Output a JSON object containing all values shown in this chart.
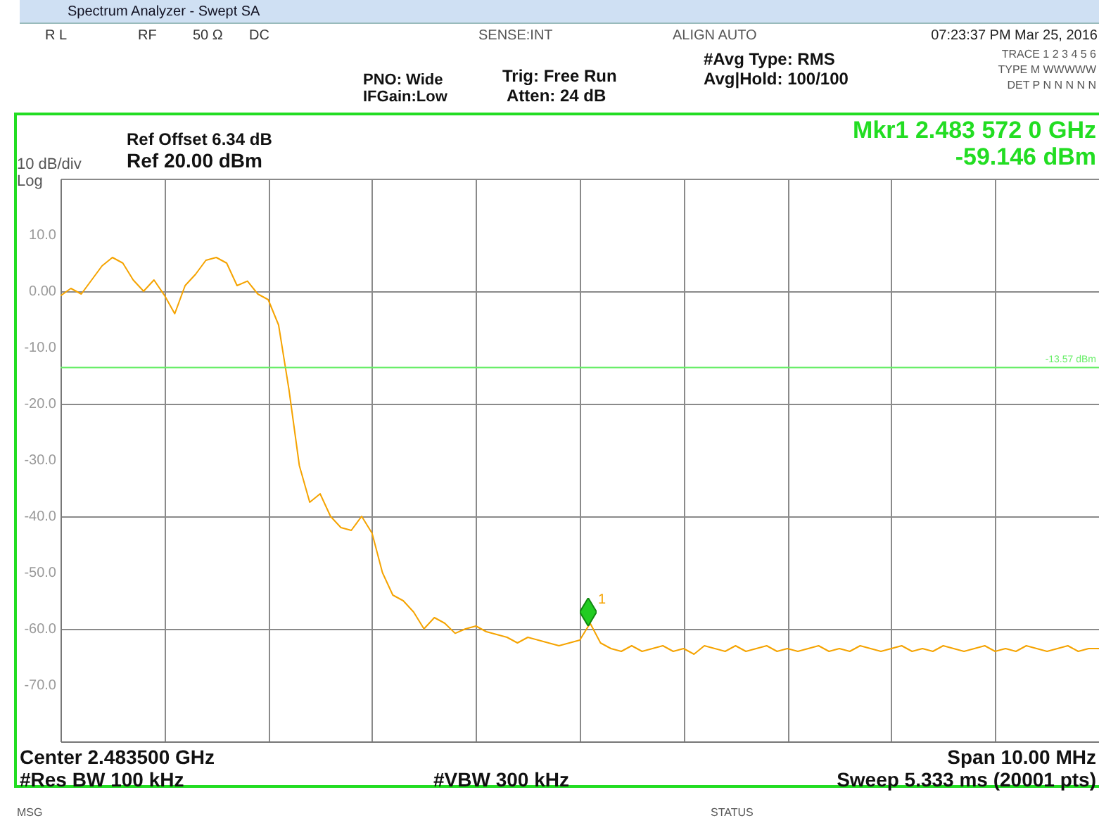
{
  "chart_data": {
    "type": "line",
    "title": "Spectrum Analyzer - Swept SA",
    "categories": [
      null,
      null,
      null,
      null,
      null,
      null,
      null,
      null,
      null,
      null,
      null,
      null,
      null,
      null,
      null,
      null,
      null,
      null,
      null,
      null,
      null,
      null,
      null,
      null,
      null,
      null,
      null,
      null,
      null,
      null,
      null,
      null,
      null,
      null,
      null,
      null,
      null,
      null,
      null,
      null,
      null,
      null,
      null,
      null,
      null,
      null,
      null,
      null,
      null,
      null,
      null,
      null,
      null,
      null,
      null,
      null,
      null,
      null,
      null,
      null,
      null,
      null,
      null,
      null,
      null,
      null,
      null,
      null,
      null,
      null,
      null,
      null,
      null,
      null,
      null,
      null,
      null,
      null,
      null,
      null,
      null,
      null,
      null,
      null,
      null,
      null,
      null,
      null,
      null,
      null,
      null,
      null,
      null,
      null,
      null,
      null,
      null,
      null,
      null,
      null,
      null
    ],
    "ylim": [
      -80,
      20
    ],
    "yticks": [
      {
        "value": 20,
        "label": null
      },
      {
        "value": 10,
        "label": "10.0"
      },
      {
        "value": 0,
        "label": "0.00"
      },
      {
        "value": -10,
        "label": "-10.0"
      },
      {
        "value": -20,
        "label": "-20.0"
      },
      {
        "value": -30,
        "label": "-30.0"
      },
      {
        "value": -40,
        "label": "-40.0"
      },
      {
        "value": -50,
        "label": "-50.0"
      },
      {
        "value": -60,
        "label": "-60.0"
      },
      {
        "value": -70,
        "label": "-70.0"
      },
      {
        "value": -80,
        "label": null
      }
    ],
    "tick_labels": "y",
    "grid": true,
    "series": [
      {
        "color": "#f5a300",
        "values": [
          -0.8,
          0.5,
          -0.5,
          2,
          4.5,
          6,
          5,
          2,
          0,
          2,
          -0.7,
          -4,
          1,
          3,
          5.5,
          6,
          5,
          1,
          1.8,
          -0.5,
          -1.5,
          -6,
          -17.5,
          -31,
          -37.5,
          -36,
          -40,
          -42,
          -42.5,
          -40,
          -43,
          -50,
          -54,
          -55,
          -57,
          -60,
          -58,
          -59,
          -60.8,
          -60,
          -59.5,
          -60.5,
          -61,
          -61.5,
          -62.5,
          -61.5,
          -62,
          -62.5,
          -63,
          -62.5,
          -62,
          -59,
          -62.5,
          -63.5,
          -64,
          -63,
          -64,
          -63.5,
          -63,
          -64,
          -63.5,
          -64.5,
          -63,
          -63.5,
          -64,
          -63,
          -64,
          -63.5,
          -63,
          -64,
          -63.5,
          -64,
          -63.5,
          -63,
          -64,
          -63.5,
          -64,
          -63,
          -63.5,
          -64,
          -63.5,
          -63,
          -64,
          -63.5,
          -64,
          -63,
          -63.5,
          -64,
          -63.5,
          -63,
          -64,
          -63.5,
          -64,
          -63,
          -63.5,
          -64,
          -63.5,
          -63,
          -64,
          -63.5,
          -63.5
        ]
      }
    ],
    "ref_lines": [
      {
        "axis": "y",
        "value": -13.57,
        "label": "-13.57 dBm",
        "color": "#66ee66"
      }
    ],
    "annotations": [
      "R L",
      "RF",
      "50 Ω",
      "DC",
      "SENSE:INT",
      "ALIGN AUTO",
      "07:23:37 PM Mar 25, 2016",
      "PNO: Wide",
      "IFGain:Low",
      "Trig: Free Run",
      "Atten: 24 dB",
      "#Avg Type: RMS",
      "Avg|Hold: 100/100",
      "TRACE 1 2 3 4 5 6",
      "TYPE M WWWWW",
      "DET P N N N N N",
      "Ref Offset 6.34 dB",
      "Ref 20.00 dBm",
      "10 dB/div",
      "Log",
      "Mkr1 2.483 572 0 GHz",
      "-59.146 dBm",
      "Center 2.483500 GHz",
      "#Res BW 100 kHz",
      "#VBW 300 kHz",
      "Span 10.00 MHz",
      "Sweep 5.333 ms (20001 pts)",
      "MSG",
      "STATUS",
      "1"
    ]
  }
}
